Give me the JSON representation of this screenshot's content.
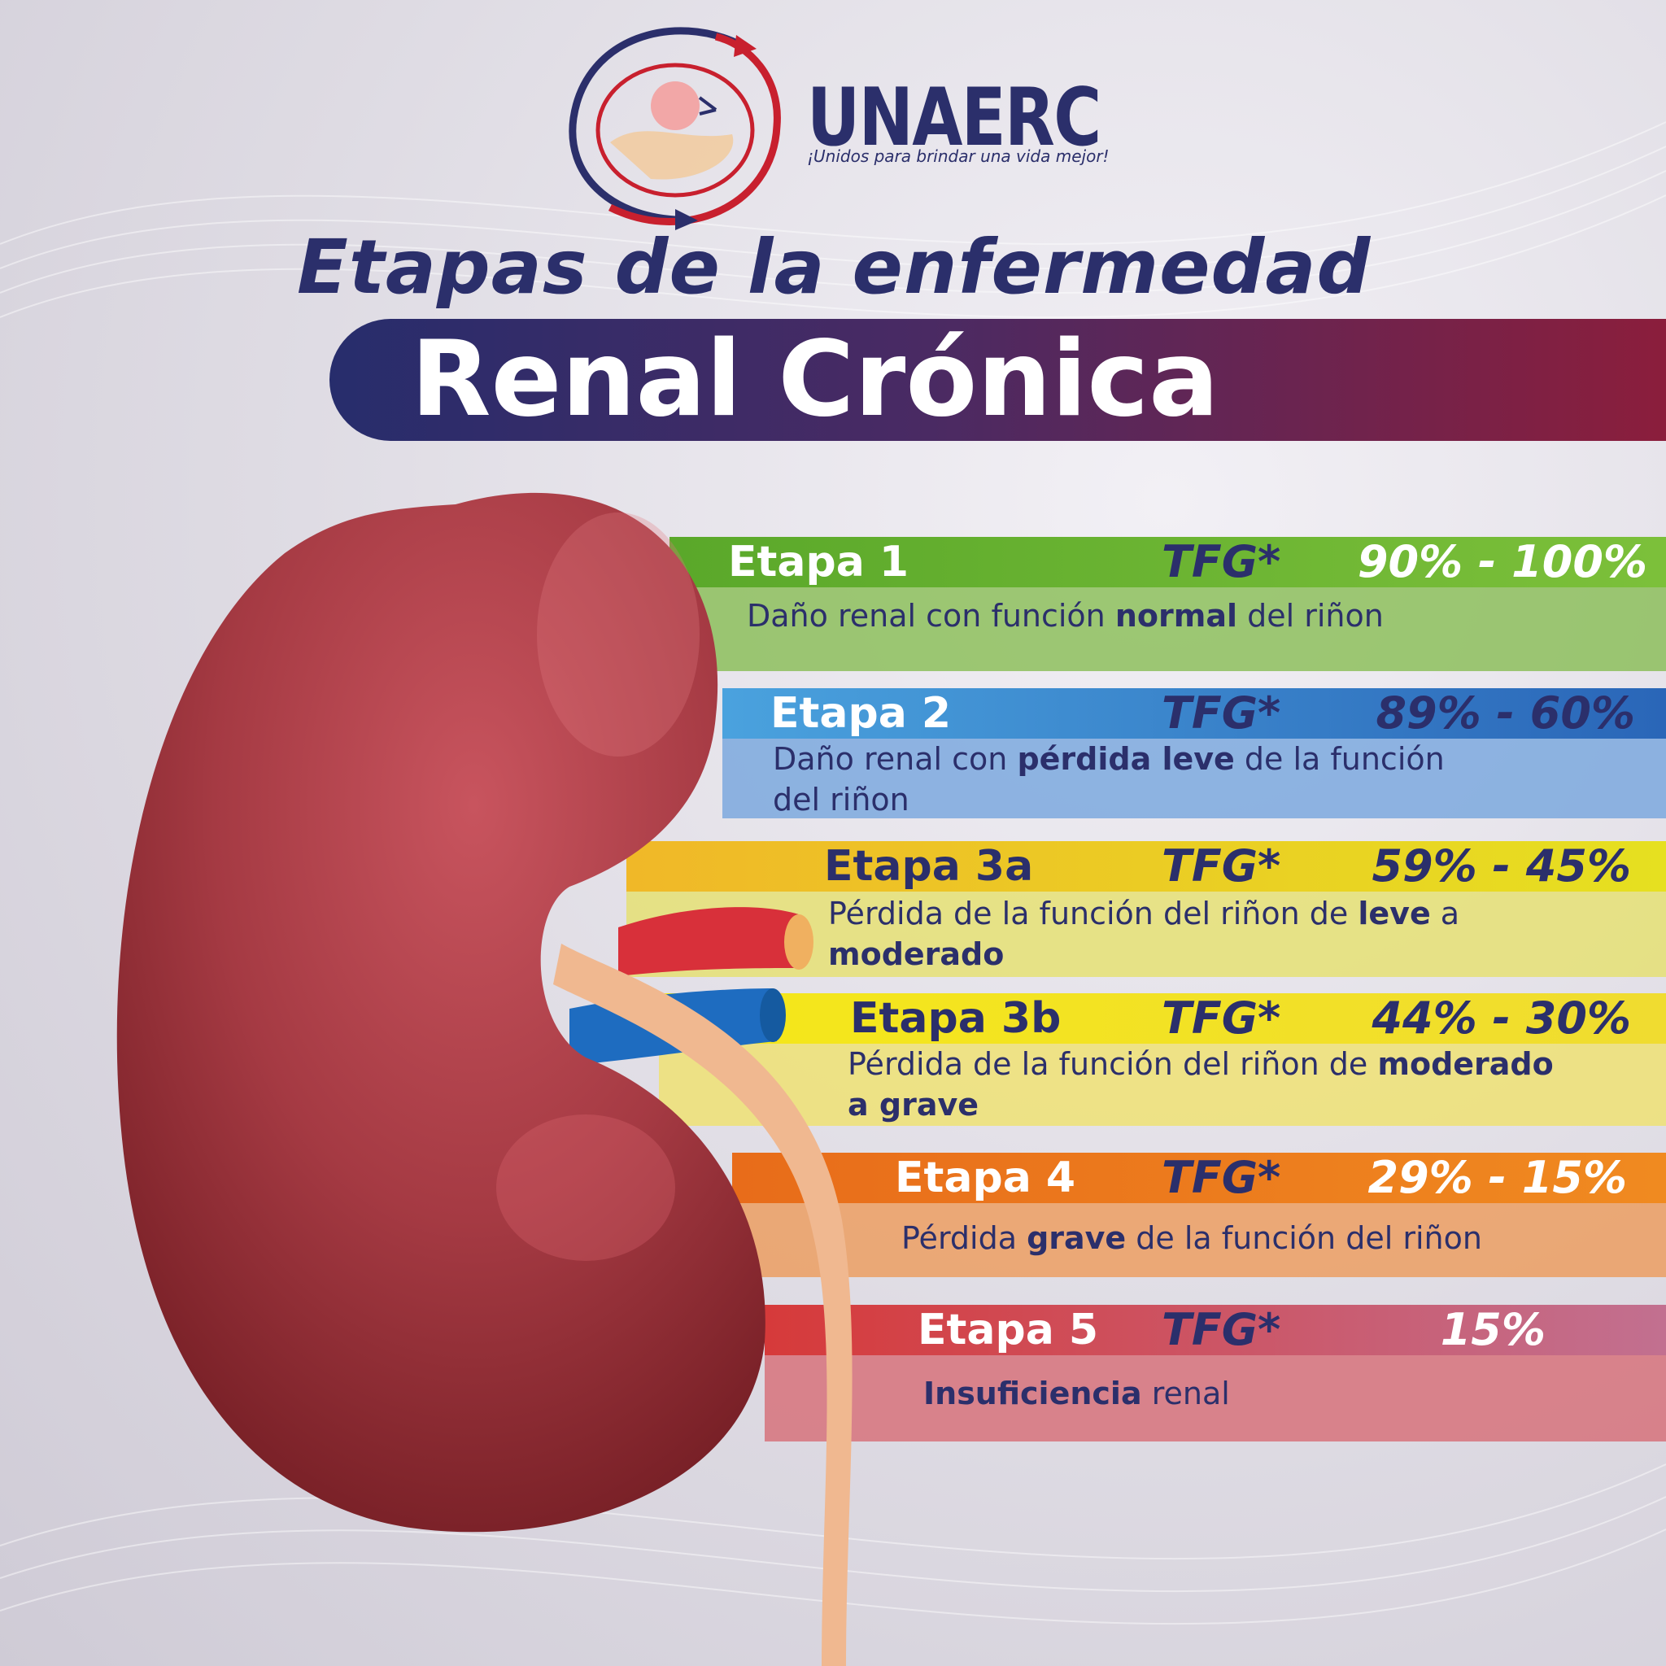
{
  "logo": {
    "name": "UNAERC",
    "tagline": "¡Unidos para brindar una vida mejor!"
  },
  "title": {
    "line1": "Etapas de la enfermedad",
    "line2": "Renal Crónica"
  },
  "stages": [
    {
      "label": "Etapa 1",
      "tfg": "TFG*",
      "range": "90% - 100%",
      "description_lines": [
        [
          {
            "text": "Daño renal con función ",
            "bold": false
          },
          {
            "text": "normal",
            "bold": true
          },
          {
            "text": " del riñon",
            "bold": false
          }
        ]
      ]
    },
    {
      "label": "Etapa 2",
      "tfg": "TFG*",
      "range": "89% - 60%",
      "description_lines": [
        [
          {
            "text": "Daño renal con ",
            "bold": false
          },
          {
            "text": "pérdida leve",
            "bold": true
          },
          {
            "text": " de la función",
            "bold": false
          }
        ],
        [
          {
            "text": "del riñon",
            "bold": false
          }
        ]
      ]
    },
    {
      "label": "Etapa 3a",
      "tfg": "TFG*",
      "range": "59% - 45%",
      "description_lines": [
        [
          {
            "text": "Pérdida de la función del riñon de ",
            "bold": false
          },
          {
            "text": "leve",
            "bold": true
          },
          {
            "text": " a",
            "bold": false
          }
        ],
        [
          {
            "text": "moderado",
            "bold": true
          }
        ]
      ]
    },
    {
      "label": "Etapa 3b",
      "tfg": "TFG*",
      "range": "44% - 30%",
      "description_lines": [
        [
          {
            "text": "Pérdida de la función del riñon de ",
            "bold": false
          },
          {
            "text": "moderado",
            "bold": true
          }
        ],
        [
          {
            "text": "a grave",
            "bold": true
          }
        ]
      ]
    },
    {
      "label": "Etapa 4",
      "tfg": "TFG*",
      "range": "29% - 15%",
      "description_lines": [
        [
          {
            "text": "Pérdida ",
            "bold": false
          },
          {
            "text": "grave",
            "bold": true
          },
          {
            "text": " de la función del riñon",
            "bold": false
          }
        ]
      ]
    },
    {
      "label": "Etapa 5",
      "tfg": "TFG*",
      "range": "15%",
      "description_lines": [
        [
          {
            "text": "Insuficiencia",
            "bold": true
          },
          {
            "text": " renal",
            "bold": false
          }
        ]
      ]
    }
  ]
}
